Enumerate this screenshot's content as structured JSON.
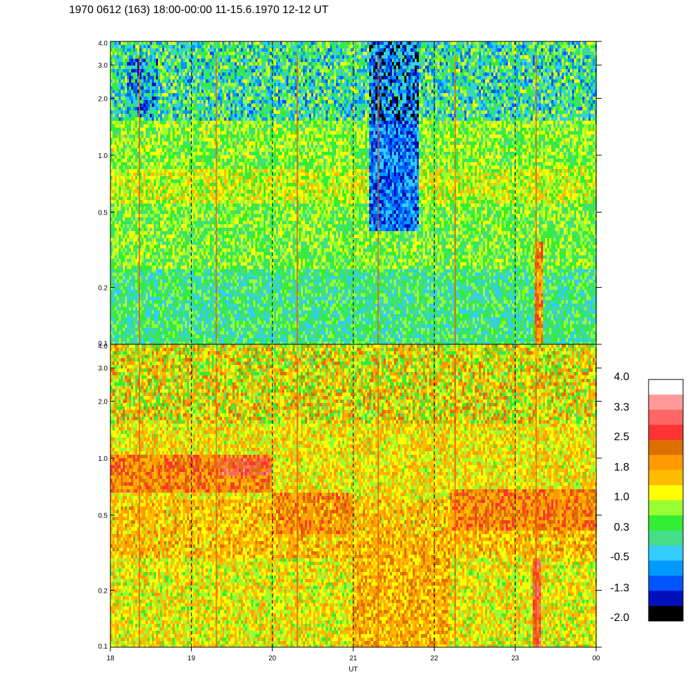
{
  "title": "1970 0612 (163) 18:00-00:00 11-15.6.1970  12-12 UT",
  "chart_data": {
    "type": "heatmap",
    "title": "1970 0612 (163) 18:00-00:00 11-15.6.1970  12-12 UT",
    "xlabel": "UT",
    "ylabel": "",
    "x_ticks": [
      "18",
      "19",
      "20",
      "21",
      "22",
      "23",
      "00"
    ],
    "x_range_hours": [
      18,
      24
    ],
    "y_scale": "log",
    "y_range": [
      0.1,
      4.0
    ],
    "y_ticks": [
      {
        "value": 4.0,
        "label": "4.0"
      },
      {
        "value": 3.0,
        "label": "3.0"
      },
      {
        "value": 2.0,
        "label": "2.0"
      },
      {
        "value": 1.0,
        "label": "1.0"
      },
      {
        "value": 0.5,
        "label": "0.5"
      },
      {
        "value": 0.2,
        "label": "0.2"
      },
      {
        "value": 0.1,
        "label": "0.1"
      }
    ],
    "vertical_dashed_lines_at_hours": [
      19,
      20,
      21,
      22,
      23
    ],
    "colorbar": {
      "labels": [
        "4.0",
        "3.3",
        "2.5",
        "1.8",
        "1.0",
        "0.3",
        "-0.5",
        "-1.3",
        "-2.0"
      ],
      "colors": [
        "#ffffff",
        "#ff9a9a",
        "#ff6666",
        "#ff3333",
        "#dd7000",
        "#ff9900",
        "#ffbb00",
        "#ffff00",
        "#99ff33",
        "#33ee33",
        "#44dd88",
        "#33ccff",
        "#0099ff",
        "#0055ff",
        "#0011bb",
        "#000000"
      ]
    },
    "panels": [
      {
        "name": "upper",
        "dominant_level": 0.6,
        "bands": [
          {
            "y_from": 0.1,
            "y_to": 0.25,
            "level": 0.2
          },
          {
            "y_from": 0.25,
            "y_to": 0.55,
            "level": 0.6
          },
          {
            "y_from": 0.55,
            "y_to": 0.85,
            "level": 1.0
          },
          {
            "y_from": 0.85,
            "y_to": 1.5,
            "level": 0.7
          },
          {
            "y_from": 1.5,
            "y_to": 4.0,
            "level": 0.1
          }
        ],
        "features": [
          {
            "x_from": 21.2,
            "x_to": 21.8,
            "y_from": 0.4,
            "y_to": 4.0,
            "level": -0.9
          },
          {
            "x_from": 18.2,
            "x_to": 18.6,
            "y_from": 1.6,
            "y_to": 3.2,
            "level": -0.5
          },
          {
            "x_from": 23.25,
            "x_to": 23.35,
            "y_from": 0.1,
            "y_to": 0.35,
            "level": 2.0
          }
        ],
        "spikes_at_hours": [
          18.35,
          19.3,
          20.3,
          21.3,
          22.25,
          23.25
        ]
      },
      {
        "name": "lower",
        "dominant_level": 1.4,
        "bands": [
          {
            "y_from": 0.1,
            "y_to": 0.3,
            "level": 1.2
          },
          {
            "y_from": 0.3,
            "y_to": 0.6,
            "level": 1.6
          },
          {
            "y_from": 0.6,
            "y_to": 4.0,
            "level": 1.3
          }
        ],
        "features": [
          {
            "x_from": 18.0,
            "x_to": 20.0,
            "y_from": 0.65,
            "y_to": 1.05,
            "level": 2.1
          },
          {
            "x_from": 19.3,
            "x_to": 20.0,
            "y_from": 0.8,
            "y_to": 1.0,
            "level": 2.6
          },
          {
            "x_from": 20.0,
            "x_to": 21.0,
            "y_from": 0.4,
            "y_to": 0.65,
            "level": 2.0
          },
          {
            "x_from": 21.0,
            "x_to": 22.2,
            "y_from": 0.1,
            "y_to": 0.4,
            "level": 1.7
          },
          {
            "x_from": 22.2,
            "x_to": 24.0,
            "y_from": 0.42,
            "y_to": 0.68,
            "level": 2.1
          },
          {
            "x_from": 23.22,
            "x_to": 23.32,
            "y_from": 0.1,
            "y_to": 0.3,
            "level": 2.6
          }
        ],
        "spikes_at_hours": [
          18.35,
          19.3,
          20.3,
          21.3,
          22.25,
          23.25
        ]
      }
    ]
  }
}
